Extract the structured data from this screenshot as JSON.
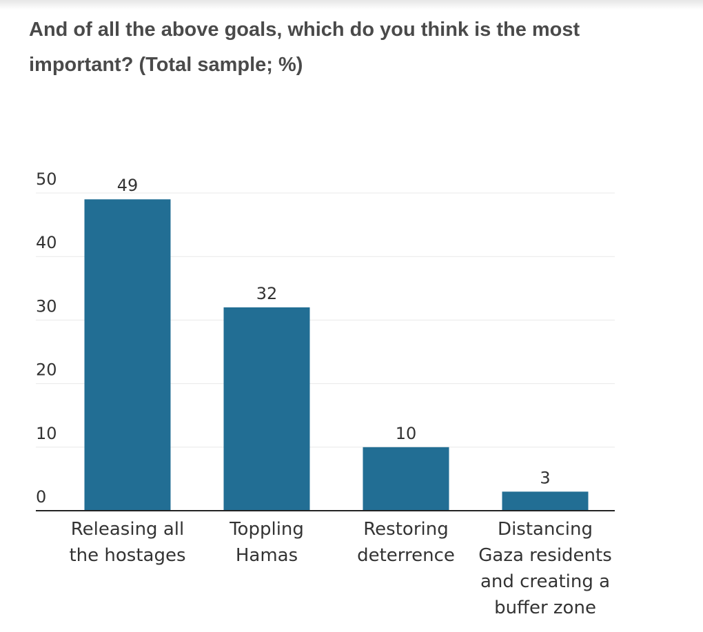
{
  "title": "And of all the above goals, which do you think is the most important? (Total sample; %)",
  "colors": {
    "bar": "#226e94",
    "grid": "#e8e8e8",
    "axis": "#222222",
    "text": "#333333"
  },
  "chart_data": {
    "type": "bar",
    "title": "And of all the above goals, which do you think is the most important? (Total sample; %)",
    "xlabel": "",
    "ylabel": "",
    "categories": [
      [
        "Releasing all",
        "the hostages"
      ],
      [
        "Toppling",
        "Hamas"
      ],
      [
        "Restoring",
        "deterrence"
      ],
      [
        "Distancing",
        "Gaza residents",
        "and creating a",
        "buffer zone"
      ]
    ],
    "values": [
      49,
      32,
      10,
      3
    ],
    "ylim": [
      0,
      50
    ],
    "yticks": [
      0,
      10,
      20,
      30,
      40,
      50
    ],
    "grid": true,
    "legend": "none",
    "data_labels": true
  }
}
